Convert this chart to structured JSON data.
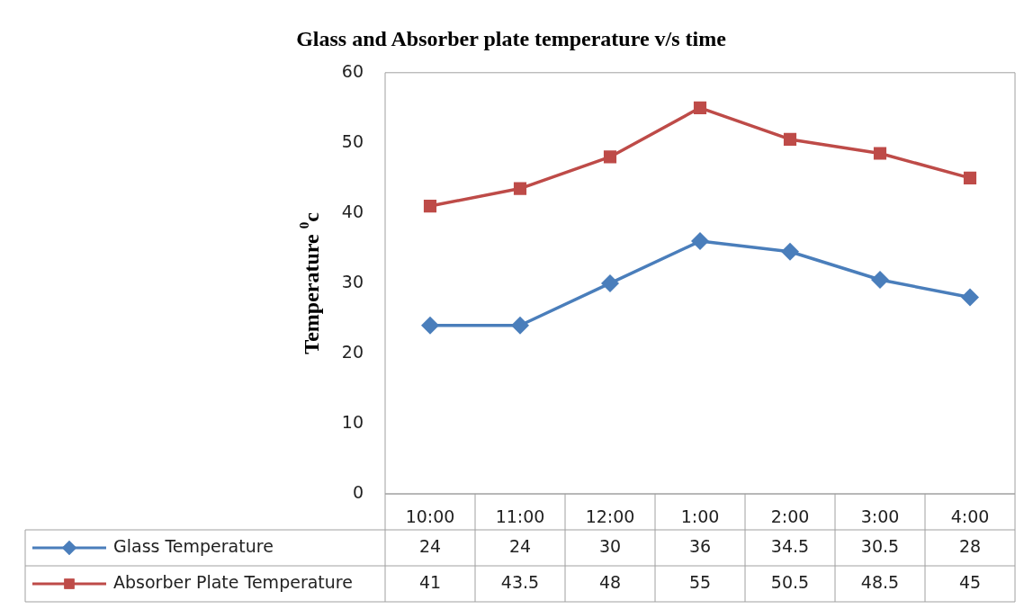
{
  "chart_data": {
    "type": "line",
    "title": "Glass and Absorber plate temperature v/s time",
    "ylabel": "Temperature $^{0}$c",
    "categories": [
      "10:00",
      "11:00",
      "12:00",
      "1:00",
      "2:00",
      "3:00",
      "4:00"
    ],
    "series": [
      {
        "name": "Glass Temperature",
        "color": "#4a7ebb",
        "marker": "diamond",
        "values": [
          24,
          24,
          30,
          36,
          34.5,
          30.5,
          28
        ]
      },
      {
        "name": "Absorber Plate Temperature",
        "color": "#be4b48",
        "marker": "square",
        "values": [
          41,
          43.5,
          48,
          55,
          50.5,
          48.5,
          45
        ]
      }
    ],
    "ylim": [
      0,
      60
    ],
    "yticks": [
      0,
      10,
      20,
      30,
      40,
      50,
      60
    ],
    "grid": false,
    "legend": "bottom",
    "data_labels": true,
    "line_style": "solid"
  }
}
